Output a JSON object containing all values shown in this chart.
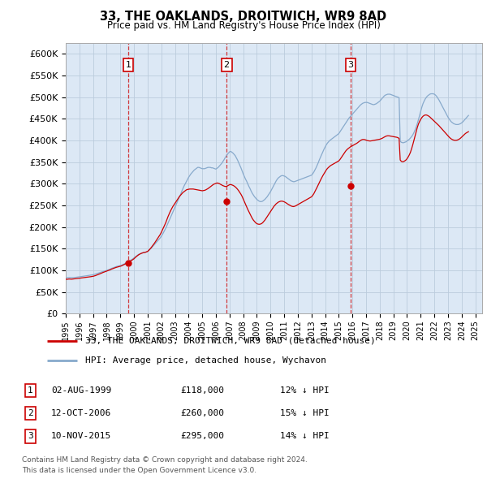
{
  "title": "33, THE OAKLANDS, DROITWICH, WR9 8AD",
  "subtitle": "Price paid vs. HM Land Registry's House Price Index (HPI)",
  "ytick_vals": [
    0,
    50000,
    100000,
    150000,
    200000,
    250000,
    300000,
    350000,
    400000,
    450000,
    500000,
    550000,
    600000
  ],
  "ylim": [
    0,
    625000
  ],
  "xlim_start": 1995.0,
  "xlim_end": 2025.5,
  "sale_dates": [
    1999.583,
    2006.783,
    2015.861
  ],
  "sale_prices": [
    118000,
    260000,
    295000
  ],
  "sale_labels": [
    "1",
    "2",
    "3"
  ],
  "sale_info": [
    {
      "num": "1",
      "date": "02-AUG-1999",
      "price": "£118,000",
      "hpi": "12% ↓ HPI"
    },
    {
      "num": "2",
      "date": "12-OCT-2006",
      "price": "£260,000",
      "hpi": "15% ↓ HPI"
    },
    {
      "num": "3",
      "date": "10-NOV-2015",
      "price": "£295,000",
      "hpi": "14% ↓ HPI"
    }
  ],
  "legend_line1": "33, THE OAKLANDS, DROITWICH, WR9 8AD (detached house)",
  "legend_line2": "HPI: Average price, detached house, Wychavon",
  "footer1": "Contains HM Land Registry data © Crown copyright and database right 2024.",
  "footer2": "This data is licensed under the Open Government Licence v3.0.",
  "red_color": "#cc0000",
  "blue_color": "#88aacc",
  "chart_bg": "#dce8f5",
  "bg_color": "#ffffff",
  "grid_color": "#bbccdd",
  "hpi_months": [
    1995.0,
    1995.083,
    1995.167,
    1995.25,
    1995.333,
    1995.417,
    1995.5,
    1995.583,
    1995.667,
    1995.75,
    1995.833,
    1995.917,
    1996.0,
    1996.083,
    1996.167,
    1996.25,
    1996.333,
    1996.417,
    1996.5,
    1996.583,
    1996.667,
    1996.75,
    1996.833,
    1996.917,
    1997.0,
    1997.083,
    1997.167,
    1997.25,
    1997.333,
    1997.417,
    1997.5,
    1997.583,
    1997.667,
    1997.75,
    1997.833,
    1997.917,
    1998.0,
    1998.083,
    1998.167,
    1998.25,
    1998.333,
    1998.417,
    1998.5,
    1998.583,
    1998.667,
    1998.75,
    1998.833,
    1998.917,
    1999.0,
    1999.083,
    1999.167,
    1999.25,
    1999.333,
    1999.417,
    1999.5,
    1999.583,
    1999.667,
    1999.75,
    1999.833,
    1999.917,
    2000.0,
    2000.083,
    2000.167,
    2000.25,
    2000.333,
    2000.417,
    2000.5,
    2000.583,
    2000.667,
    2000.75,
    2000.833,
    2000.917,
    2001.0,
    2001.083,
    2001.167,
    2001.25,
    2001.333,
    2001.417,
    2001.5,
    2001.583,
    2001.667,
    2001.75,
    2001.833,
    2001.917,
    2002.0,
    2002.083,
    2002.167,
    2002.25,
    2002.333,
    2002.417,
    2002.5,
    2002.583,
    2002.667,
    2002.75,
    2002.833,
    2002.917,
    2003.0,
    2003.083,
    2003.167,
    2003.25,
    2003.333,
    2003.417,
    2003.5,
    2003.583,
    2003.667,
    2003.75,
    2003.833,
    2003.917,
    2004.0,
    2004.083,
    2004.167,
    2004.25,
    2004.333,
    2004.417,
    2004.5,
    2004.583,
    2004.667,
    2004.75,
    2004.833,
    2004.917,
    2005.0,
    2005.083,
    2005.167,
    2005.25,
    2005.333,
    2005.417,
    2005.5,
    2005.583,
    2005.667,
    2005.75,
    2005.833,
    2005.917,
    2006.0,
    2006.083,
    2006.167,
    2006.25,
    2006.333,
    2006.417,
    2006.5,
    2006.583,
    2006.667,
    2006.75,
    2006.833,
    2006.917,
    2007.0,
    2007.083,
    2007.167,
    2007.25,
    2007.333,
    2007.417,
    2007.5,
    2007.583,
    2007.667,
    2007.75,
    2007.833,
    2007.917,
    2008.0,
    2008.083,
    2008.167,
    2008.25,
    2008.333,
    2008.417,
    2008.5,
    2008.583,
    2008.667,
    2008.75,
    2008.833,
    2008.917,
    2009.0,
    2009.083,
    2009.167,
    2009.25,
    2009.333,
    2009.417,
    2009.5,
    2009.583,
    2009.667,
    2009.75,
    2009.833,
    2009.917,
    2010.0,
    2010.083,
    2010.167,
    2010.25,
    2010.333,
    2010.417,
    2010.5,
    2010.583,
    2010.667,
    2010.75,
    2010.833,
    2010.917,
    2011.0,
    2011.083,
    2011.167,
    2011.25,
    2011.333,
    2011.417,
    2011.5,
    2011.583,
    2011.667,
    2011.75,
    2011.833,
    2011.917,
    2012.0,
    2012.083,
    2012.167,
    2012.25,
    2012.333,
    2012.417,
    2012.5,
    2012.583,
    2012.667,
    2012.75,
    2012.833,
    2012.917,
    2013.0,
    2013.083,
    2013.167,
    2013.25,
    2013.333,
    2013.417,
    2013.5,
    2013.583,
    2013.667,
    2013.75,
    2013.833,
    2013.917,
    2014.0,
    2014.083,
    2014.167,
    2014.25,
    2014.333,
    2014.417,
    2014.5,
    2014.583,
    2014.667,
    2014.75,
    2014.833,
    2014.917,
    2015.0,
    2015.083,
    2015.167,
    2015.25,
    2015.333,
    2015.417,
    2015.5,
    2015.583,
    2015.667,
    2015.75,
    2015.833,
    2015.917,
    2016.0,
    2016.083,
    2016.167,
    2016.25,
    2016.333,
    2016.417,
    2016.5,
    2016.583,
    2016.667,
    2016.75,
    2016.833,
    2016.917,
    2017.0,
    2017.083,
    2017.167,
    2017.25,
    2017.333,
    2017.417,
    2017.5,
    2017.583,
    2017.667,
    2017.75,
    2017.833,
    2017.917,
    2018.0,
    2018.083,
    2018.167,
    2018.25,
    2018.333,
    2018.417,
    2018.5,
    2018.583,
    2018.667,
    2018.75,
    2018.833,
    2018.917,
    2019.0,
    2019.083,
    2019.167,
    2019.25,
    2019.333,
    2019.417,
    2019.5,
    2019.583,
    2019.667,
    2019.75,
    2019.833,
    2019.917,
    2020.0,
    2020.083,
    2020.167,
    2020.25,
    2020.333,
    2020.417,
    2020.5,
    2020.583,
    2020.667,
    2020.75,
    2020.833,
    2020.917,
    2021.0,
    2021.083,
    2021.167,
    2021.25,
    2021.333,
    2021.417,
    2021.5,
    2021.583,
    2021.667,
    2021.75,
    2021.833,
    2021.917,
    2022.0,
    2022.083,
    2022.167,
    2022.25,
    2022.333,
    2022.417,
    2022.5,
    2022.583,
    2022.667,
    2022.75,
    2022.833,
    2022.917,
    2023.0,
    2023.083,
    2023.167,
    2023.25,
    2023.333,
    2023.417,
    2023.5,
    2023.583,
    2023.667,
    2023.75,
    2023.833,
    2023.917,
    2024.0,
    2024.083,
    2024.167,
    2024.25,
    2024.333,
    2024.417,
    2024.5
  ],
  "blue_vals": [
    83000,
    83500,
    83200,
    83800,
    83600,
    83400,
    83500,
    83700,
    83800,
    84200,
    84500,
    84800,
    85200,
    85600,
    86000,
    86500,
    86800,
    87200,
    87500,
    87800,
    88200,
    88600,
    89000,
    89500,
    90000,
    90800,
    91500,
    92500,
    93200,
    94000,
    95000,
    96000,
    97000,
    97800,
    98500,
    99200,
    100000,
    101000,
    102000,
    103000,
    104500,
    105500,
    106500,
    107500,
    108500,
    109500,
    110000,
    110500,
    111000,
    112000,
    113500,
    114500,
    116000,
    117500,
    119000,
    120500,
    122000,
    123500,
    125000,
    127000,
    129000,
    131000,
    133000,
    135000,
    137000,
    138000,
    139000,
    140000,
    141000,
    141500,
    142000,
    143000,
    144000,
    146000,
    148500,
    151000,
    154000,
    157000,
    160000,
    163000,
    166000,
    169000,
    172000,
    175000,
    179000,
    183000,
    188000,
    193000,
    198000,
    204000,
    210000,
    216000,
    222000,
    228000,
    234000,
    240000,
    246000,
    252000,
    258000,
    264000,
    270000,
    276000,
    283000,
    289000,
    295000,
    300000,
    305000,
    310000,
    315000,
    319000,
    323000,
    326000,
    329000,
    332000,
    334000,
    336000,
    338000,
    338000,
    337000,
    336000,
    335000,
    335000,
    335000,
    336000,
    337000,
    338000,
    338000,
    338000,
    337000,
    337000,
    336000,
    335000,
    334000,
    336000,
    338000,
    341000,
    344000,
    347000,
    351000,
    355000,
    360000,
    364000,
    368000,
    371000,
    374000,
    375000,
    373000,
    371000,
    368000,
    365000,
    360000,
    355000,
    349000,
    343000,
    337000,
    330000,
    323000,
    317000,
    311000,
    306000,
    300000,
    294000,
    289000,
    283000,
    278000,
    274000,
    270000,
    267000,
    264000,
    262000,
    260000,
    259000,
    259000,
    260000,
    262000,
    264000,
    267000,
    270000,
    274000,
    278000,
    282000,
    287000,
    292000,
    297000,
    302000,
    307000,
    311000,
    314000,
    316000,
    318000,
    319000,
    319000,
    318000,
    317000,
    315000,
    313000,
    311000,
    309000,
    307000,
    306000,
    305000,
    305000,
    306000,
    307000,
    308000,
    309000,
    310000,
    311000,
    312000,
    313000,
    314000,
    315000,
    316000,
    317000,
    318000,
    319000,
    320000,
    323000,
    327000,
    332000,
    337000,
    343000,
    349000,
    356000,
    362000,
    368000,
    374000,
    380000,
    385000,
    390000,
    394000,
    397000,
    400000,
    402000,
    404000,
    406000,
    408000,
    410000,
    412000,
    414000,
    416000,
    420000,
    424000,
    428000,
    432000,
    436000,
    440000,
    444000,
    448000,
    452000,
    455000,
    458000,
    461000,
    464000,
    467000,
    470000,
    473000,
    476000,
    479000,
    482000,
    484000,
    486000,
    487000,
    488000,
    488000,
    488000,
    487000,
    486000,
    485000,
    484000,
    483000,
    483000,
    484000,
    485000,
    487000,
    489000,
    491000,
    494000,
    497000,
    500000,
    503000,
    505000,
    506000,
    507000,
    507000,
    507000,
    506000,
    505000,
    504000,
    503000,
    502000,
    501000,
    500000,
    499000,
    398000,
    396000,
    395000,
    395000,
    396000,
    397000,
    399000,
    401000,
    403000,
    406000,
    409000,
    413000,
    418000,
    424000,
    431000,
    439000,
    448000,
    458000,
    468000,
    477000,
    485000,
    491000,
    496000,
    500000,
    503000,
    505000,
    507000,
    508000,
    508000,
    508000,
    507000,
    505000,
    502000,
    498000,
    494000,
    489000,
    484000,
    479000,
    474000,
    469000,
    464000,
    459000,
    454000,
    450000,
    446000,
    443000,
    441000,
    439000,
    438000,
    437000,
    437000,
    437000,
    438000,
    439000,
    441000,
    443000,
    446000,
    449000,
    452000,
    455000,
    458000,
    461000,
    463000,
    465000,
    466000,
    467000,
    468000,
    469000,
    470000,
    471000,
    472000,
    473000,
    474000
  ],
  "red_vals": [
    80000,
    79500,
    79800,
    80200,
    80000,
    79800,
    80100,
    80300,
    80500,
    80800,
    81200,
    81500,
    82000,
    82500,
    82800,
    83200,
    83500,
    83800,
    84200,
    84500,
    84800,
    85200,
    85600,
    86000,
    86500,
    87200,
    88000,
    89000,
    90000,
    91000,
    92200,
    93400,
    94500,
    95600,
    96500,
    97500,
    98500,
    99500,
    100500,
    101500,
    102800,
    103800,
    104800,
    105800,
    106800,
    107500,
    108200,
    108800,
    109500,
    110500,
    111800,
    113000,
    114500,
    116000,
    117500,
    119000,
    120500,
    122000,
    123500,
    125000,
    127000,
    129500,
    132000,
    134000,
    136000,
    137500,
    139000,
    140000,
    141000,
    141500,
    142000,
    143000,
    144000,
    146500,
    149500,
    152500,
    156000,
    159500,
    163000,
    167000,
    171000,
    175000,
    179000,
    183000,
    188000,
    193500,
    199000,
    205000,
    211000,
    218000,
    225000,
    231000,
    237000,
    242000,
    247000,
    251000,
    255000,
    259000,
    263000,
    267000,
    271000,
    274000,
    277000,
    280000,
    282000,
    284000,
    286000,
    287000,
    287500,
    288000,
    288000,
    288000,
    288000,
    287500,
    287000,
    286500,
    286000,
    285500,
    285000,
    284500,
    284000,
    284500,
    285000,
    286000,
    287500,
    289000,
    291000,
    293000,
    295000,
    297000,
    299000,
    300000,
    301000,
    302000,
    301500,
    300500,
    299000,
    297500,
    296000,
    295000,
    294000,
    294000,
    295000,
    296500,
    298000,
    298500,
    297500,
    296500,
    295000,
    293000,
    290500,
    287500,
    284000,
    280000,
    276000,
    271000,
    265000,
    259000,
    253000,
    247000,
    241000,
    235500,
    230000,
    225000,
    220000,
    216000,
    213000,
    210000,
    208000,
    207000,
    206500,
    207000,
    208000,
    210000,
    213000,
    216000,
    220000,
    224000,
    228000,
    232000,
    236000,
    240000,
    244000,
    248000,
    251000,
    254000,
    256000,
    258000,
    259000,
    260000,
    260000,
    259500,
    258500,
    257000,
    255500,
    253500,
    252000,
    250500,
    249000,
    248000,
    247500,
    248000,
    249000,
    250500,
    252000,
    253500,
    255000,
    256500,
    258000,
    259500,
    261000,
    262500,
    264000,
    265500,
    267000,
    268500,
    270000,
    273000,
    277000,
    282000,
    287000,
    292500,
    298000,
    303500,
    309000,
    314000,
    319000,
    323500,
    328000,
    332000,
    335500,
    338000,
    340500,
    342500,
    344000,
    345500,
    347000,
    348500,
    350000,
    351500,
    353000,
    356000,
    360000,
    364000,
    368000,
    372000,
    375500,
    378500,
    381000,
    383000,
    385000,
    386500,
    388000,
    389500,
    391000,
    392500,
    394000,
    396000,
    398000,
    400000,
    401500,
    402500,
    402500,
    402000,
    401000,
    400000,
    399500,
    399000,
    399000,
    399500,
    400000,
    400500,
    401000,
    401500,
    402000,
    402500,
    403000,
    404000,
    405000,
    406500,
    408000,
    409500,
    410500,
    411000,
    411000,
    410500,
    410000,
    409500,
    409000,
    408500,
    408000,
    407500,
    406500,
    405000,
    355000,
    352000,
    351000,
    351500,
    353000,
    355000,
    358000,
    362000,
    367000,
    373000,
    381000,
    390000,
    400000,
    410000,
    420000,
    430000,
    438000,
    444000,
    449000,
    453000,
    456000,
    458000,
    459000,
    459000,
    458000,
    456500,
    454500,
    452000,
    449500,
    447000,
    444500,
    442000,
    439500,
    437000,
    434500,
    431500,
    428500,
    425500,
    422500,
    419500,
    416500,
    413500,
    410500,
    408000,
    405500,
    403500,
    402000,
    401000,
    400500,
    400500,
    401000,
    402000,
    403500,
    405500,
    408000,
    410500,
    413000,
    415500,
    417500,
    419000,
    420500,
    421500,
    422000,
    422500,
    422500,
    422500,
    422000,
    421500,
    420500,
    419500,
    418500,
    417000,
    415500
  ]
}
